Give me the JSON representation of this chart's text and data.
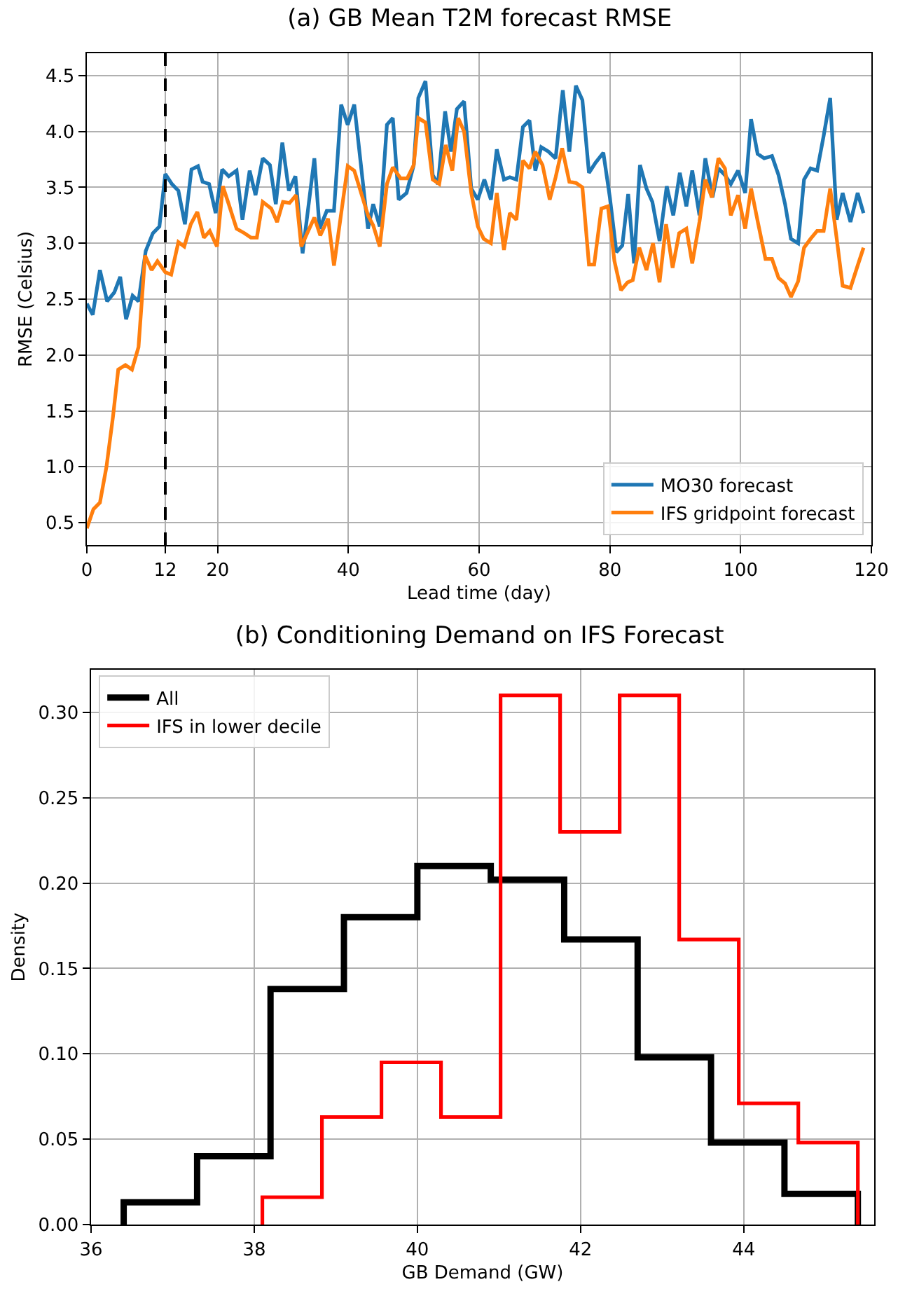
{
  "chart_data": [
    {
      "type": "line",
      "title": "(a) GB Mean T2M forecast RMSE",
      "xlabel": "Lead time (day)",
      "ylabel": "RMSE (Celsius)",
      "xlim": [
        0,
        120
      ],
      "xticks": [
        0,
        12,
        20,
        40,
        60,
        80,
        100,
        120
      ],
      "ylim": [
        0.3,
        4.7
      ],
      "yticks": [
        {
          "value": 0.5,
          "label": "0.5"
        },
        {
          "value": 1,
          "label": "1.0"
        },
        {
          "value": 1.5,
          "label": "1.5"
        },
        {
          "value": 2,
          "label": "2.0"
        },
        {
          "value": 2.5,
          "label": "2.5"
        },
        {
          "value": 3,
          "label": "3.0"
        },
        {
          "value": 3.5,
          "label": "3.5"
        },
        {
          "value": 4,
          "label": "4.0"
        },
        {
          "value": 4.5,
          "label": "4.5"
        }
      ],
      "grid": true,
      "legend": "bottom right",
      "marker": "none",
      "line_style": "solid",
      "ref_lines": [
        {
          "axis": "x",
          "value": 12,
          "color": "#000000",
          "line_style": "dashed"
        }
      ],
      "series": [
        {
          "name": "MO30 forecast",
          "color": "#1f77b4",
          "x": [
            0,
            0.9,
            2,
            3.1,
            4.2,
            5.1,
            6,
            7,
            7.9,
            9,
            10.1,
            11.1,
            12,
            13,
            14,
            15,
            16,
            17,
            17.7,
            18.7,
            19.7,
            20.7,
            21.7,
            22.9,
            23.8,
            24.9,
            25.8,
            26.9,
            28,
            28.9,
            29.9,
            30.9,
            31.9,
            33,
            34.8,
            35.6,
            36.7,
            37.8,
            38.9,
            39.9,
            40.9,
            43,
            43.8,
            44.8,
            45.9,
            46.8,
            47.7,
            48.9,
            50,
            50.7,
            51.8,
            52.9,
            53.7,
            54.8,
            55.7,
            56.6,
            57.7,
            58.8,
            59.8,
            60.8,
            61.8,
            62.7,
            63.8,
            64.7,
            65.7,
            66.7,
            67.7,
            68.6,
            69.5,
            70.6,
            71.7,
            72.8,
            73.8,
            74.8,
            75.8,
            76.8,
            77.8,
            79,
            80,
            81,
            81.9,
            82.8,
            83.7,
            84.6,
            85.6,
            86.5,
            87.6,
            88.7,
            89.7,
            90.7,
            91.7,
            92.6,
            93.7,
            94.6,
            95.7,
            96.6,
            97.6,
            98.5,
            99.6,
            100.7,
            101.6,
            102.6,
            103.6,
            104.8,
            105.8,
            106.8,
            107.7,
            108.8,
            109.7,
            110.7,
            111.7,
            112.7,
            113.7,
            114.7,
            115.6,
            116.8,
            117.9,
            118.8
          ],
          "values": [
            2.46,
            2.36,
            2.76,
            2.48,
            2.56,
            2.7,
            2.32,
            2.53,
            2.48,
            2.93,
            3.09,
            3.15,
            3.62,
            3.53,
            3.47,
            3.17,
            3.66,
            3.69,
            3.55,
            3.53,
            3.27,
            3.66,
            3.6,
            3.65,
            3.21,
            3.65,
            3.43,
            3.76,
            3.7,
            3.35,
            3.9,
            3.47,
            3.6,
            2.91,
            3.76,
            3.13,
            3.29,
            3.29,
            4.24,
            4.06,
            4.24,
            3.13,
            3.35,
            3.15,
            4.06,
            4.12,
            3.39,
            3.45,
            3.7,
            4.3,
            4.45,
            3.61,
            3.53,
            4.18,
            3.82,
            4.2,
            4.27,
            3.49,
            3.39,
            3.57,
            3.39,
            3.84,
            3.57,
            3.59,
            3.57,
            4.04,
            4.1,
            3.65,
            3.86,
            3.82,
            3.76,
            4.37,
            3.82,
            4.41,
            4.28,
            3.63,
            3.72,
            3.81,
            3.41,
            2.92,
            2.98,
            3.44,
            2.82,
            3.7,
            3.49,
            3.37,
            3.02,
            3.51,
            3.25,
            3.63,
            3.33,
            3.65,
            3.25,
            3.76,
            3.41,
            3.67,
            3.61,
            3.53,
            3.65,
            3.45,
            4.11,
            3.8,
            3.76,
            3.78,
            3.61,
            3.35,
            3.04,
            3.0,
            3.57,
            3.67,
            3.65,
            3.96,
            4.3,
            3.21,
            3.45,
            3.19,
            3.45,
            3.27
          ]
        },
        {
          "name": "IFS gridpoint forecast",
          "color": "#ff7f0e",
          "x": [
            0,
            1,
            2,
            3,
            4,
            4.8,
            5.9,
            6.9,
            7.9,
            8.9,
            9.9,
            10.8,
            12,
            12.9,
            14,
            14.9,
            15.9,
            16.9,
            17.9,
            18.8,
            19.9,
            20.8,
            21.7,
            22.9,
            24.1,
            25.1,
            26,
            26.9,
            28.2,
            29.1,
            30,
            31,
            32,
            32.8,
            33.7,
            34.8,
            35.7,
            36.9,
            37.8,
            39.9,
            40.9,
            43,
            43.8,
            44.8,
            45.9,
            46.8,
            48,
            49,
            50,
            50.7,
            51.8,
            52.9,
            53.9,
            54.9,
            55.9,
            56.8,
            57.7,
            58.8,
            59.8,
            60.7,
            61.8,
            62.7,
            63.8,
            64.7,
            65.7,
            66.7,
            67.7,
            68.6,
            69.7,
            70.8,
            71.7,
            72.7,
            73.8,
            74.8,
            75.8,
            76.8,
            77.6,
            78.7,
            79.7,
            80.7,
            81.7,
            82.7,
            83.5,
            84.5,
            85.6,
            86.6,
            87.6,
            88.6,
            89.6,
            90.6,
            91.7,
            92.6,
            93.7,
            94.6,
            95.6,
            96.6,
            97.6,
            98.5,
            99.6,
            100.7,
            101.6,
            102.7,
            103.8,
            104.8,
            105.8,
            106.8,
            107.7,
            108.8,
            109.7,
            110.7,
            111.7,
            112.7,
            113.7,
            114.7,
            115.6,
            116.8,
            117.9,
            118.8
          ],
          "values": [
            0.45,
            0.62,
            0.68,
            1.0,
            1.45,
            1.87,
            1.91,
            1.87,
            2.07,
            2.89,
            2.76,
            2.84,
            2.74,
            2.72,
            3.01,
            2.97,
            3.17,
            3.28,
            3.05,
            3.11,
            2.97,
            3.51,
            3.35,
            3.13,
            3.09,
            3.05,
            3.05,
            3.37,
            3.31,
            3.19,
            3.37,
            3.36,
            3.43,
            2.97,
            3.09,
            3.23,
            3.07,
            3.22,
            2.8,
            3.69,
            3.65,
            3.25,
            3.16,
            2.97,
            3.53,
            3.68,
            3.58,
            3.58,
            3.7,
            4.12,
            4.08,
            3.57,
            3.53,
            3.88,
            3.65,
            4.12,
            4.0,
            3.45,
            3.15,
            3.04,
            3.0,
            3.45,
            2.94,
            3.27,
            3.21,
            3.74,
            3.67,
            3.82,
            3.7,
            3.39,
            3.59,
            3.85,
            3.55,
            3.54,
            3.5,
            2.81,
            2.81,
            3.31,
            3.33,
            2.84,
            2.58,
            2.65,
            2.67,
            2.96,
            2.76,
            3.0,
            2.65,
            3.17,
            2.78,
            3.09,
            3.13,
            2.82,
            3.19,
            3.57,
            3.41,
            3.76,
            3.67,
            3.25,
            3.43,
            3.13,
            3.49,
            3.17,
            2.86,
            2.86,
            2.69,
            2.64,
            2.52,
            2.66,
            2.96,
            3.04,
            3.11,
            3.11,
            3.49,
            3.04,
            2.62,
            2.6,
            2.8,
            2.96
          ]
        }
      ]
    },
    {
      "type": "step",
      "title": "(b) Conditioning Demand on IFS Forecast",
      "xlabel": "GB Demand (GW)",
      "ylabel": "Density",
      "xlim": [
        36,
        45.6
      ],
      "xticks": [
        36,
        38,
        40,
        42,
        44
      ],
      "ylim": [
        0,
        0.325
      ],
      "yticks": [
        {
          "value": 0,
          "label": "0.00"
        },
        {
          "value": 0.05,
          "label": "0.05"
        },
        {
          "value": 0.1,
          "label": "0.10"
        },
        {
          "value": 0.15,
          "label": "0.15"
        },
        {
          "value": 0.2,
          "label": "0.20"
        },
        {
          "value": 0.25,
          "label": "0.25"
        },
        {
          "value": 0.3,
          "label": "0.30"
        }
      ],
      "grid": true,
      "legend": "top left",
      "series": [
        {
          "name": "All",
          "color": "#000000",
          "x": [
            36.4,
            36.4,
            37.3,
            38.2,
            39.1,
            40.0,
            40.9,
            41.8,
            42.7,
            43.6,
            44.5,
            45.4,
            45.4
          ],
          "values": [
            0,
            0.013,
            0.04,
            0.138,
            0.18,
            0.21,
            0.202,
            0.167,
            0.098,
            0.048,
            0.018,
            0.018,
            0
          ]
        },
        {
          "name": "IFS in lower decile",
          "color": "#ff0000",
          "x": [
            38.1,
            38.1,
            38.83,
            39.56,
            40.29,
            41.02,
            41.75,
            42.48,
            43.21,
            43.94,
            44.67,
            45.4,
            45.4
          ],
          "values": [
            0,
            0.016,
            0.063,
            0.095,
            0.063,
            0.31,
            0.23,
            0.31,
            0.167,
            0.071,
            0.048,
            0.048,
            0
          ]
        }
      ]
    }
  ]
}
